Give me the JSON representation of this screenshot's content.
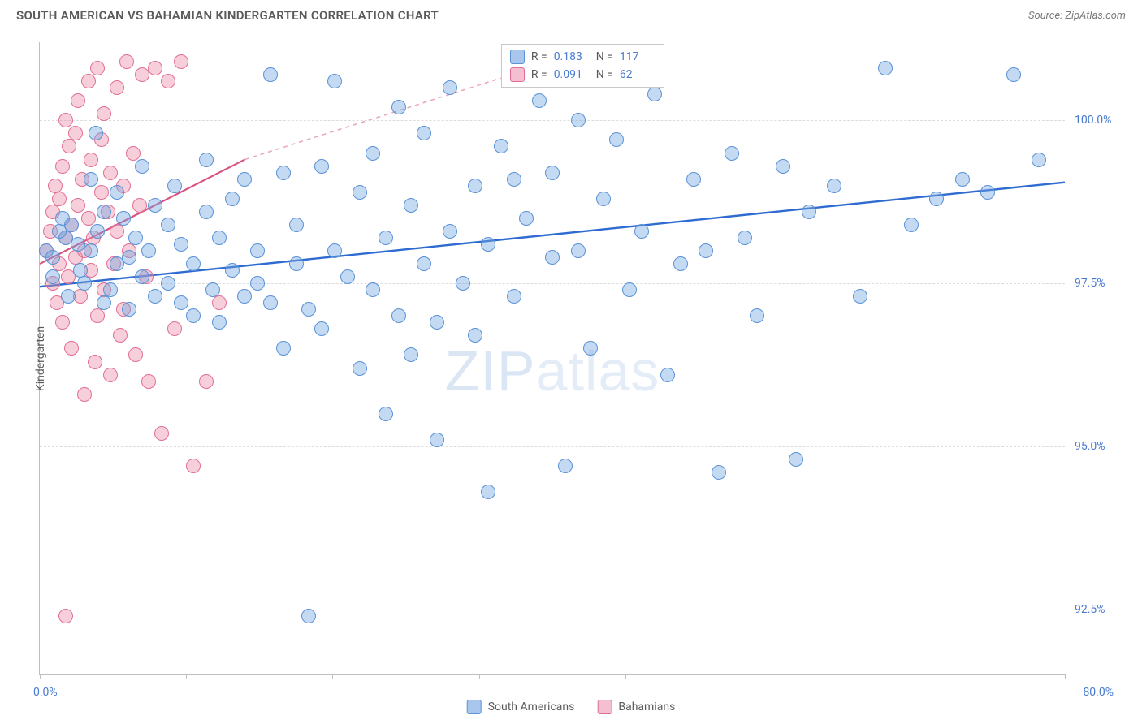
{
  "header": {
    "title": "SOUTH AMERICAN VS BAHAMIAN KINDERGARTEN CORRELATION CHART",
    "source": "Source: ZipAtlas.com"
  },
  "watermark": {
    "bold": "ZIP",
    "light": "atlas"
  },
  "chart": {
    "type": "scatter",
    "xlim": [
      0,
      80
    ],
    "ylim": [
      91.5,
      101.2
    ],
    "xticks": [
      0,
      11.4,
      22.8,
      34.3,
      45.7,
      57.1,
      68.6,
      80
    ],
    "xtick_labels": {
      "min": "0.0%",
      "max": "80.0%"
    },
    "yticks": [
      92.5,
      95.0,
      97.5,
      100.0
    ],
    "ytick_labels": [
      "92.5%",
      "95.0%",
      "97.5%",
      "100.0%"
    ],
    "yaxis_title": "Kindergarten",
    "background_color": "#ffffff",
    "grid_color": "#dcdcdc",
    "axis_color": "#bfbfbf",
    "tick_font_color": "#4a7bd0",
    "marker_radius": 9,
    "series": [
      {
        "name": "South Americans",
        "fill": "rgba(115,165,224,0.42)",
        "stroke": "#5a92d6",
        "swatch_fill": "#a9c7ec",
        "swatch_border": "#5a92d6",
        "R": "0.183",
        "N": "117",
        "trend": {
          "x1": 0,
          "y1": 97.45,
          "x2": 80,
          "y2": 99.05,
          "color": "#2f6bd0",
          "width": 2.4
        },
        "points": [
          [
            2,
            98.2
          ],
          [
            2.5,
            98.4
          ],
          [
            3,
            98.1
          ],
          [
            3.2,
            97.7
          ],
          [
            3.5,
            97.5
          ],
          [
            4,
            98.0
          ],
          [
            4,
            99.1
          ],
          [
            4.5,
            98.3
          ],
          [
            5,
            98.6
          ],
          [
            5,
            97.2
          ],
          [
            5.5,
            97.4
          ],
          [
            6,
            97.8
          ],
          [
            6,
            98.9
          ],
          [
            6.5,
            98.5
          ],
          [
            7,
            97.9
          ],
          [
            7,
            97.1
          ],
          [
            7.5,
            98.2
          ],
          [
            8,
            97.6
          ],
          [
            8,
            99.3
          ],
          [
            8.5,
            98.0
          ],
          [
            9,
            97.3
          ],
          [
            9,
            98.7
          ],
          [
            10,
            97.5
          ],
          [
            10,
            98.4
          ],
          [
            10.5,
            99.0
          ],
          [
            11,
            98.1
          ],
          [
            11,
            97.2
          ],
          [
            12,
            97.8
          ],
          [
            12,
            97.0
          ],
          [
            13,
            98.6
          ],
          [
            13,
            99.4
          ],
          [
            13.5,
            97.4
          ],
          [
            14,
            98.2
          ],
          [
            14,
            96.9
          ],
          [
            15,
            97.7
          ],
          [
            15,
            98.8
          ],
          [
            16,
            97.3
          ],
          [
            16,
            99.1
          ],
          [
            17,
            98.0
          ],
          [
            17,
            97.5
          ],
          [
            18,
            97.2
          ],
          [
            18,
            100.7
          ],
          [
            19,
            99.2
          ],
          [
            19,
            96.5
          ],
          [
            20,
            97.8
          ],
          [
            20,
            98.4
          ],
          [
            21,
            97.1
          ],
          [
            21,
            92.4
          ],
          [
            22,
            99.3
          ],
          [
            22,
            96.8
          ],
          [
            23,
            98.0
          ],
          [
            23,
            100.6
          ],
          [
            24,
            97.6
          ],
          [
            25,
            98.9
          ],
          [
            25,
            96.2
          ],
          [
            26,
            97.4
          ],
          [
            26,
            99.5
          ],
          [
            27,
            95.5
          ],
          [
            27,
            98.2
          ],
          [
            28,
            97.0
          ],
          [
            28,
            100.2
          ],
          [
            29,
            96.4
          ],
          [
            29,
            98.7
          ],
          [
            30,
            97.8
          ],
          [
            30,
            99.8
          ],
          [
            31,
            95.1
          ],
          [
            31,
            96.9
          ],
          [
            32,
            98.3
          ],
          [
            32,
            100.5
          ],
          [
            33,
            97.5
          ],
          [
            34,
            96.7
          ],
          [
            34,
            99.0
          ],
          [
            35,
            98.1
          ],
          [
            35,
            94.3
          ],
          [
            36,
            99.6
          ],
          [
            37,
            99.1
          ],
          [
            37,
            97.3
          ],
          [
            38,
            98.5
          ],
          [
            39,
            100.3
          ],
          [
            40,
            97.9
          ],
          [
            40,
            99.2
          ],
          [
            41,
            94.7
          ],
          [
            42,
            98.0
          ],
          [
            42,
            100.0
          ],
          [
            43,
            96.5
          ],
          [
            44,
            98.8
          ],
          [
            45,
            99.7
          ],
          [
            46,
            97.4
          ],
          [
            47,
            98.3
          ],
          [
            48,
            100.4
          ],
          [
            49,
            96.1
          ],
          [
            50,
            97.8
          ],
          [
            51,
            99.1
          ],
          [
            52,
            98.0
          ],
          [
            53,
            94.6
          ],
          [
            54,
            99.5
          ],
          [
            55,
            98.2
          ],
          [
            56,
            97.0
          ],
          [
            58,
            99.3
          ],
          [
            59,
            94.8
          ],
          [
            60,
            98.6
          ],
          [
            62,
            99.0
          ],
          [
            64,
            97.3
          ],
          [
            66,
            100.8
          ],
          [
            68,
            98.4
          ],
          [
            70,
            98.8
          ],
          [
            72,
            99.1
          ],
          [
            74,
            98.9
          ],
          [
            76,
            100.7
          ],
          [
            78,
            99.4
          ],
          [
            0.5,
            98.0
          ],
          [
            1,
            97.6
          ],
          [
            1.5,
            98.3
          ],
          [
            1,
            97.9
          ],
          [
            1.8,
            98.5
          ],
          [
            2.2,
            97.3
          ],
          [
            4.4,
            99.8
          ]
        ]
      },
      {
        "name": "Bahamians",
        "fill": "rgba(236,140,168,0.42)",
        "stroke": "#e16f95",
        "swatch_fill": "#f4bfd0",
        "swatch_border": "#e16f95",
        "R": "0.091",
        "N": "62",
        "trend_solid": {
          "x1": 0,
          "y1": 97.8,
          "x2": 16,
          "y2": 99.4,
          "color": "#d9537f",
          "width": 2.2
        },
        "trend_dashed": {
          "x1": 16,
          "y1": 99.4,
          "x2": 40,
          "y2": 100.9,
          "color": "#eaa8bb",
          "width": 1.6
        },
        "points": [
          [
            0.5,
            98.0
          ],
          [
            0.8,
            98.3
          ],
          [
            1,
            97.5
          ],
          [
            1,
            98.6
          ],
          [
            1.2,
            99.0
          ],
          [
            1.3,
            97.2
          ],
          [
            1.5,
            98.8
          ],
          [
            1.5,
            97.8
          ],
          [
            1.8,
            99.3
          ],
          [
            1.8,
            96.9
          ],
          [
            2,
            98.2
          ],
          [
            2,
            100.0
          ],
          [
            2.2,
            97.6
          ],
          [
            2.3,
            99.6
          ],
          [
            2.5,
            98.4
          ],
          [
            2.5,
            96.5
          ],
          [
            2.8,
            99.8
          ],
          [
            2.8,
            97.9
          ],
          [
            3,
            98.7
          ],
          [
            3,
            100.3
          ],
          [
            3.2,
            97.3
          ],
          [
            3.3,
            99.1
          ],
          [
            3.5,
            98.0
          ],
          [
            3.5,
            95.8
          ],
          [
            3.8,
            100.6
          ],
          [
            3.8,
            98.5
          ],
          [
            4,
            97.7
          ],
          [
            4,
            99.4
          ],
          [
            4.2,
            98.2
          ],
          [
            4.3,
            96.3
          ],
          [
            4.5,
            100.8
          ],
          [
            4.5,
            97.0
          ],
          [
            4.8,
            98.9
          ],
          [
            4.8,
            99.7
          ],
          [
            5,
            97.4
          ],
          [
            5,
            100.1
          ],
          [
            5.3,
            98.6
          ],
          [
            5.5,
            96.1
          ],
          [
            5.5,
            99.2
          ],
          [
            5.8,
            97.8
          ],
          [
            6,
            100.5
          ],
          [
            6,
            98.3
          ],
          [
            6.3,
            96.7
          ],
          [
            6.5,
            99.0
          ],
          [
            6.5,
            97.1
          ],
          [
            6.8,
            100.9
          ],
          [
            7,
            98.0
          ],
          [
            7.3,
            99.5
          ],
          [
            7.5,
            96.4
          ],
          [
            7.8,
            98.7
          ],
          [
            8,
            100.7
          ],
          [
            8.3,
            97.6
          ],
          [
            8.5,
            96.0
          ],
          [
            9,
            100.8
          ],
          [
            9.5,
            95.2
          ],
          [
            10,
            100.6
          ],
          [
            10.5,
            96.8
          ],
          [
            11,
            100.9
          ],
          [
            12,
            94.7
          ],
          [
            13,
            96.0
          ],
          [
            14,
            97.2
          ],
          [
            2,
            92.4
          ]
        ]
      }
    ]
  },
  "legend": {
    "items": [
      {
        "label": "South Americans",
        "fill": "#a9c7ec",
        "border": "#5a92d6"
      },
      {
        "label": "Bahamians",
        "fill": "#f4bfd0",
        "border": "#e16f95"
      }
    ]
  }
}
